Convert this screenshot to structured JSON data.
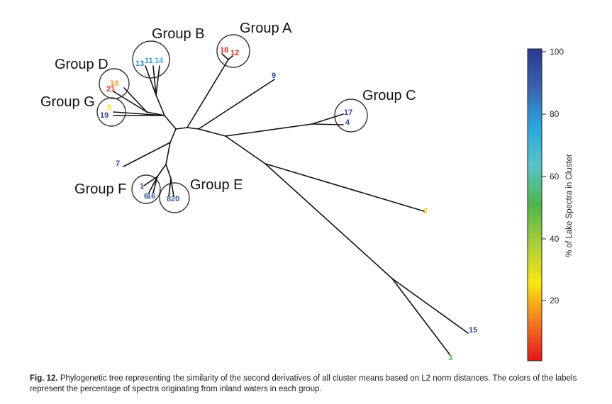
{
  "groups": [
    {
      "key": "A",
      "label": "Group A"
    },
    {
      "key": "B",
      "label": "Group B"
    },
    {
      "key": "C",
      "label": "Group C"
    },
    {
      "key": "D",
      "label": "Group D"
    },
    {
      "key": "E",
      "label": "Group E"
    },
    {
      "key": "F",
      "label": "Group F"
    },
    {
      "key": "G",
      "label": "Group G"
    }
  ],
  "leaves": [
    {
      "id": "1",
      "lake_pct": 95
    },
    {
      "id": "2",
      "lake_pct": 22
    },
    {
      "id": "3",
      "lake_pct": 50
    },
    {
      "id": "4",
      "lake_pct": 95
    },
    {
      "id": "5",
      "lake_pct": 25
    },
    {
      "id": "6",
      "lake_pct": 95
    },
    {
      "id": "7",
      "lake_pct": 97
    },
    {
      "id": "8",
      "lake_pct": 92
    },
    {
      "id": "9",
      "lake_pct": 95
    },
    {
      "id": "10",
      "lake_pct": 16
    },
    {
      "id": "11",
      "lake_pct": 78
    },
    {
      "id": "12",
      "lake_pct": 3
    },
    {
      "id": "13",
      "lake_pct": 80
    },
    {
      "id": "14",
      "lake_pct": 72
    },
    {
      "id": "15",
      "lake_pct": 97
    },
    {
      "id": "16",
      "lake_pct": 92
    },
    {
      "id": "17",
      "lake_pct": 95
    },
    {
      "id": "18",
      "lake_pct": 3
    },
    {
      "id": "19",
      "lake_pct": 97
    },
    {
      "id": "20",
      "lake_pct": 92
    },
    {
      "id": "21",
      "lake_pct": 3
    }
  ],
  "colorbar": {
    "label": "% of Lake Spectra in Cluster",
    "ticks": [
      20,
      40,
      60,
      80,
      100
    ],
    "range": [
      0,
      100
    ],
    "colors": [
      "#e8141c",
      "#f47a1f",
      "#fbe610",
      "#a9cf38",
      "#4cb749",
      "#58c4c8",
      "#2aa7e0",
      "#3a63b0",
      "#2a3a8e"
    ]
  },
  "caption": {
    "label": "Fig. 12.",
    "text": " Phylogenetic tree representing the similarity of the second derivatives of all cluster means based on L2 norm distances. The colors of the labels represent the percentage of spectra originating from inland waters in each group."
  }
}
